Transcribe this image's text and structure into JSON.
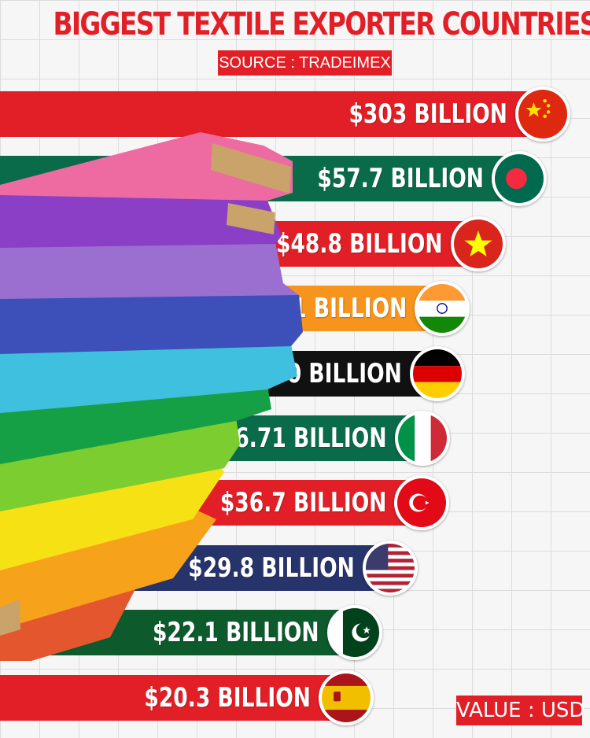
{
  "title": "BIGGEST TEXTILE EXPORTER COUNTRIES",
  "source": "SOURCE : TRADEIMEX",
  "unit": "VALUE : USD",
  "colors": {
    "title": "#e21f26",
    "source_bg": "#e21f26",
    "unit_bg": "#e21f26"
  },
  "chart_data": {
    "type": "bar",
    "orientation": "horizontal",
    "title": "BIGGEST TEXTILE EXPORTER COUNTRIES",
    "categories": [
      "China",
      "Bangladesh",
      "Vietnam",
      "India",
      "Germany",
      "Italy",
      "Turkey",
      "United States",
      "Pakistan",
      "Spain"
    ],
    "values": [
      303,
      57.7,
      48.8,
      41.1,
      40,
      36.71,
      36.7,
      29.8,
      22.1,
      20.3
    ],
    "value_unit": "billion USD",
    "labels": [
      "$303 BILLION",
      "$57.7 BILLION",
      "$48.8 BILLION",
      "$41.1 BILLION",
      "$40 BILLION",
      "$36.71 BILLION",
      "$36.7 BILLION",
      "$29.8 BILLION",
      "$22.1 BILLION",
      "$20.3 BILLION"
    ],
    "bar_colors": [
      "#e21f26",
      "#0a6b4a",
      "#e21f26",
      "#f7941d",
      "#111111",
      "#0a6b4a",
      "#e21f26",
      "#27336b",
      "#0d5a2c",
      "#e21f26"
    ],
    "flag_icons": [
      "china-flag-icon",
      "bangladesh-flag-icon",
      "vietnam-flag-icon",
      "india-flag-icon",
      "germany-flag-icon",
      "italy-flag-icon",
      "turkey-flag-icon",
      "usa-flag-icon",
      "pakistan-flag-icon",
      "spain-flag-icon"
    ],
    "grid": true,
    "legend": "none"
  }
}
